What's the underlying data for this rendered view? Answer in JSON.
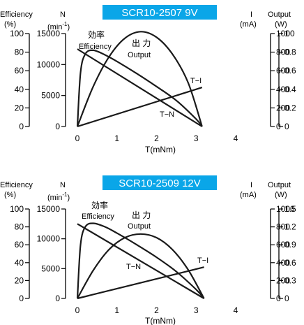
{
  "chart_data": [
    {
      "type": "line",
      "title": "SCR10-2507  9V",
      "xlabel": "T(mNm)",
      "x_ticks": [
        "0",
        "1",
        "2",
        "3",
        "4"
      ],
      "xlim": [
        0,
        4
      ],
      "axes": {
        "efficiency": {
          "label": "Efficiency",
          "unit": "(%)",
          "ticks": [
            "100",
            "80",
            "60",
            "40",
            "20",
            "0"
          ],
          "range": [
            0,
            100
          ]
        },
        "speed": {
          "label": "N",
          "unit": "(min",
          "unit_sup": "-1",
          "unit_close": ")",
          "ticks": [
            "15000",
            "10000",
            "5000",
            "0"
          ],
          "range": [
            0,
            15000
          ]
        },
        "current": {
          "label": "I",
          "unit": "(mA)",
          "ticks": [
            "1000",
            "800",
            "600",
            "400",
            "200",
            "0"
          ],
          "range": [
            0,
            1000
          ]
        },
        "output": {
          "label": "Output",
          "unit": "(W)",
          "ticks": [
            "1",
            "0.8",
            "0.6",
            "0.4",
            "0.2",
            "0"
          ],
          "range": [
            0,
            1
          ]
        }
      },
      "annotations": {
        "efficiency_jp": "効率",
        "efficiency_en": "Efficiency",
        "output_jp": "出 力",
        "output_en": "Output",
        "t_i": "T−I",
        "t_n": "T−N"
      },
      "series": [
        {
          "name": "T−N",
          "axis": "speed",
          "x": [
            0,
            3.15
          ],
          "y": [
            12500,
            0
          ]
        },
        {
          "name": "T−I",
          "axis": "current",
          "x": [
            0,
            3.15
          ],
          "y": [
            0,
            420
          ]
        },
        {
          "name": "Output",
          "axis": "output",
          "x": [
            0,
            0.4,
            0.8,
            1.2,
            1.6,
            2.0,
            2.4,
            2.8,
            3.15
          ],
          "y": [
            0,
            0.43,
            0.75,
            0.95,
            1.02,
            0.96,
            0.78,
            0.47,
            0
          ]
        },
        {
          "name": "Efficiency",
          "axis": "efficiency",
          "x": [
            0,
            0.08,
            0.2,
            0.4,
            0.7,
            1.0,
            1.5,
            2.0,
            2.5,
            3.0,
            3.15
          ],
          "y": [
            0,
            58,
            78,
            82,
            77,
            70,
            57,
            43,
            28,
            8,
            0
          ]
        }
      ]
    },
    {
      "type": "line",
      "title": "SCR10-2509  12V",
      "xlabel": "T(mNm)",
      "x_ticks": [
        "0",
        "1",
        "2",
        "3",
        "4"
      ],
      "xlim": [
        0,
        4
      ],
      "axes": {
        "efficiency": {
          "label": "Efficiency",
          "unit": "(%)",
          "ticks": [
            "100",
            "80",
            "60",
            "40",
            "20",
            "0"
          ],
          "range": [
            0,
            100
          ]
        },
        "speed": {
          "label": "N",
          "unit": "(min",
          "unit_sup": "-1",
          "unit_close": ")",
          "ticks": [
            "15000",
            "10000",
            "5000",
            "0"
          ],
          "range": [
            0,
            15000
          ]
        },
        "current": {
          "label": "I",
          "unit": "(mA)",
          "ticks": [
            "1000",
            "800",
            "600",
            "400",
            "200",
            "0"
          ],
          "range": [
            0,
            1000
          ]
        },
        "output": {
          "label": "Output",
          "unit": "(W)",
          "ticks": [
            "1.5",
            "1.2",
            "0.9",
            "0.6",
            "0.3",
            "0"
          ],
          "range": [
            0,
            1.5
          ]
        }
      },
      "annotations": {
        "efficiency_jp": "効率",
        "efficiency_en": "Efficiency",
        "output_jp": "出 力",
        "output_en": "Output",
        "t_i": "T−I",
        "t_n": "T−N"
      },
      "series": [
        {
          "name": "T−N",
          "axis": "speed",
          "x": [
            0,
            3.2
          ],
          "y": [
            12500,
            0
          ]
        },
        {
          "name": "T−I",
          "axis": "current",
          "x": [
            0,
            3.2
          ],
          "y": [
            0,
            350
          ]
        },
        {
          "name": "Output",
          "axis": "output",
          "x": [
            0,
            0.4,
            0.8,
            1.2,
            1.6,
            2.0,
            2.4,
            2.8,
            3.2
          ],
          "y": [
            0,
            0.47,
            0.82,
            1.02,
            1.08,
            1.02,
            0.82,
            0.48,
            0
          ]
        },
        {
          "name": "Efficiency",
          "axis": "efficiency",
          "x": [
            0,
            0.08,
            0.2,
            0.4,
            0.7,
            1.0,
            1.5,
            2.0,
            2.5,
            3.0,
            3.2
          ],
          "y": [
            0,
            60,
            80,
            84,
            80,
            73,
            60,
            46,
            30,
            10,
            0
          ]
        }
      ]
    }
  ]
}
